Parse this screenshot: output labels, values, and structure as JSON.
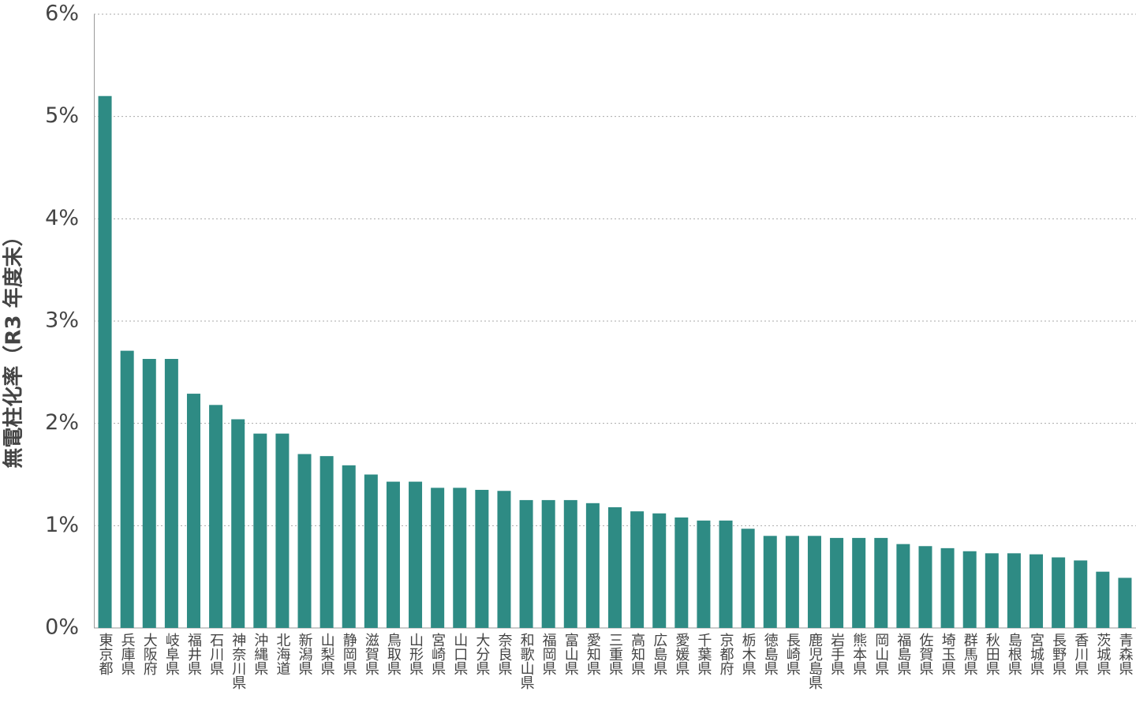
{
  "chart_data": {
    "type": "bar",
    "y_label": "無電柱化率（R3 年度末）",
    "categories": [
      "東京都",
      "兵庫県",
      "大阪府",
      "岐阜県",
      "福井県",
      "石川県",
      "神奈川県",
      "沖縄県",
      "北海道",
      "新潟県",
      "山梨県",
      "静岡県",
      "滋賀県",
      "鳥取県",
      "山形県",
      "宮崎県",
      "山口県",
      "大分県",
      "奈良県",
      "和歌山県",
      "福岡県",
      "富山県",
      "愛知県",
      "三重県",
      "高知県",
      "広島県",
      "愛媛県",
      "千葉県",
      "京都府",
      "栃木県",
      "徳島県",
      "長崎県",
      "鹿児島県",
      "岩手県",
      "熊本県",
      "岡山県",
      "福島県",
      "佐賀県",
      "埼玉県",
      "群馬県",
      "秋田県",
      "島根県",
      "宮城県",
      "長野県",
      "香川県",
      "茨城県",
      "青森県"
    ],
    "values": [
      5.2,
      2.71,
      2.63,
      2.63,
      2.29,
      2.18,
      2.04,
      1.9,
      1.9,
      1.7,
      1.68,
      1.59,
      1.5,
      1.43,
      1.43,
      1.37,
      1.37,
      1.35,
      1.34,
      1.25,
      1.25,
      1.25,
      1.22,
      1.18,
      1.14,
      1.12,
      1.08,
      1.05,
      1.05,
      0.97,
      0.9,
      0.9,
      0.9,
      0.88,
      0.88,
      0.88,
      0.82,
      0.8,
      0.78,
      0.75,
      0.73,
      0.73,
      0.72,
      0.69,
      0.66,
      0.55,
      0.49
    ],
    "color": "#2e8b84",
    "ylim": [
      0,
      6
    ],
    "yticks": [
      {
        "value": 0,
        "label": "0%"
      },
      {
        "value": 1,
        "label": "1%"
      },
      {
        "value": 2,
        "label": "2%"
      },
      {
        "value": 3,
        "label": "3%"
      },
      {
        "value": 4,
        "label": "4%"
      },
      {
        "value": 5,
        "label": "5%"
      },
      {
        "value": 6,
        "label": "6%"
      }
    ],
    "grid": true
  }
}
